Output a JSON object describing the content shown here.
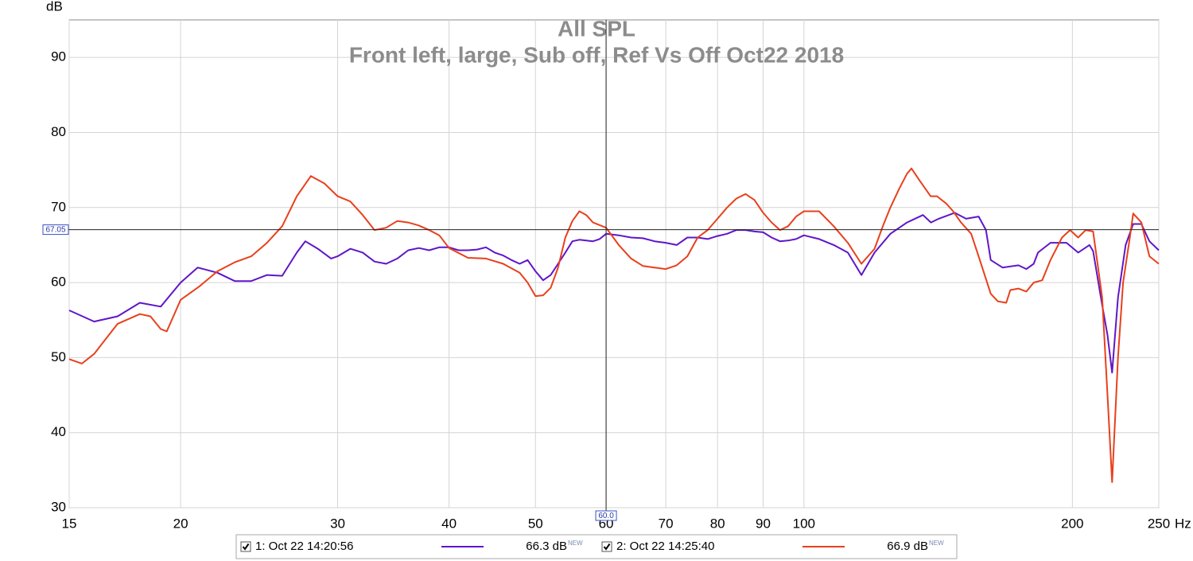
{
  "chart_data": {
    "type": "line",
    "title": "All SPL",
    "subtitle": "Front left, large, Sub off, Ref Vs Off Oct22 2018",
    "y_label": "dB",
    "x_label": "Hz",
    "xscale": "log",
    "xlim": [
      15,
      250
    ],
    "ylim": [
      30,
      95
    ],
    "xticks": [
      15,
      20,
      30,
      40,
      50,
      60,
      70,
      80,
      90,
      100,
      200,
      250
    ],
    "yticks": [
      30,
      40,
      50,
      60,
      70,
      80,
      90
    ],
    "grid": true,
    "cursor": {
      "x": {
        "value": 60,
        "label": "60.0"
      },
      "y": 67.05
    },
    "series": [
      {
        "name": "1: Oct 22 14:20:56",
        "color": "#5f16c8",
        "text_color": "#5a14b4",
        "checked": true,
        "level": {
          "value": 66.3,
          "label": "66.3 dB"
        },
        "badge": "NEW",
        "x": [
          15,
          16,
          17,
          18,
          19,
          20,
          20.9,
          22,
          23,
          24,
          25,
          26,
          27,
          27.6,
          28.5,
          29.5,
          30,
          31,
          32,
          33,
          34,
          35,
          36,
          37,
          38,
          39,
          40,
          41,
          42,
          43,
          44,
          45,
          46,
          47,
          48,
          49,
          50,
          51,
          52,
          53,
          54,
          55,
          56,
          58,
          59,
          60,
          62,
          64,
          66,
          68,
          70,
          72,
          74,
          76,
          78,
          80,
          82,
          84,
          86,
          88,
          90,
          92,
          94,
          96,
          98,
          100,
          104,
          108,
          112,
          116,
          120,
          125,
          130.5,
          136,
          138.8,
          141.6,
          147.6,
          152,
          157,
          160,
          162,
          167,
          174,
          177.6,
          181,
          183,
          189,
          197,
          203,
          209,
          211,
          216,
          219,
          221.6,
          225,
          229.5,
          234,
          239,
          244,
          250
        ],
        "values": [
          56.3,
          54.8,
          55.5,
          57.3,
          56.8,
          60,
          62,
          61.3,
          60.2,
          60.2,
          61,
          60.9,
          64,
          65.5,
          64.5,
          63.2,
          63.5,
          64.5,
          64,
          62.8,
          62.5,
          63.2,
          64.3,
          64.6,
          64.3,
          64.7,
          64.7,
          64.3,
          64.3,
          64.4,
          64.7,
          64,
          63.6,
          63,
          62.5,
          63,
          61.5,
          60.3,
          61,
          62.5,
          64,
          65.5,
          65.7,
          65.5,
          65.8,
          66.5,
          66.3,
          66,
          65.9,
          65.5,
          65.3,
          65,
          66,
          66,
          65.8,
          66.2,
          66.5,
          67,
          67,
          66.8,
          66.7,
          66,
          65.5,
          65.6,
          65.8,
          66.3,
          65.8,
          65,
          64,
          61,
          64,
          66.5,
          68,
          69,
          68,
          68.5,
          69.3,
          68.5,
          68.8,
          67,
          63,
          62,
          62.3,
          61.8,
          62.5,
          64,
          65.3,
          65.3,
          64,
          65,
          64.2,
          57,
          53,
          48,
          58,
          65,
          67.8,
          67.8,
          65.5,
          64.3
        ]
      },
      {
        "name": "2: Oct 22 14:25:40",
        "color": "#e8401c",
        "text_color": "#e03c12",
        "checked": true,
        "level": {
          "value": 66.9,
          "label": "66.9 dB"
        },
        "badge": "NEW",
        "x": [
          15,
          15.5,
          16,
          17,
          18,
          18.5,
          19,
          19.3,
          20,
          21,
          22,
          23,
          24,
          25,
          26,
          27,
          28,
          29,
          30,
          31,
          32,
          33,
          34,
          35,
          36,
          37,
          38,
          39,
          40,
          42,
          44,
          46,
          48,
          49,
          50,
          51,
          52,
          53,
          54,
          55,
          56,
          57,
          58,
          60,
          62,
          64,
          66,
          68,
          70,
          72,
          74,
          76,
          78,
          80,
          82,
          84,
          86,
          88,
          90,
          92,
          94,
          96,
          98,
          100,
          104,
          108,
          112,
          116,
          120,
          122.6,
          125,
          127.9,
          130.5,
          132,
          135,
          138.7,
          141,
          144.5,
          147,
          150,
          154,
          157.5,
          162,
          165,
          168.6,
          170.4,
          174,
          177.6,
          181,
          185,
          189,
          194.7,
          198.8,
          203,
          207,
          211,
          216,
          219,
          221.6,
          225,
          228,
          232,
          234,
          239,
          244,
          250
        ],
        "values": [
          49.8,
          49.2,
          50.5,
          54.5,
          55.8,
          55.5,
          53.8,
          53.5,
          57.7,
          59.5,
          61.5,
          62.7,
          63.5,
          65.3,
          67.5,
          71.5,
          74.2,
          73.2,
          71.5,
          70.8,
          69,
          67,
          67.3,
          68.2,
          68,
          67.6,
          67,
          66.3,
          64.6,
          63.3,
          63.2,
          62.5,
          61.3,
          60,
          58.2,
          58.3,
          59.3,
          62,
          66,
          68.2,
          69.5,
          69,
          68,
          67.3,
          65,
          63.2,
          62.2,
          62,
          61.8,
          62.3,
          63.5,
          66,
          67,
          68.5,
          70,
          71.2,
          71.8,
          71,
          69.3,
          68,
          67,
          67.5,
          68.8,
          69.5,
          69.5,
          67.5,
          65.3,
          62.5,
          64.5,
          67.5,
          70,
          72.5,
          74.5,
          75.2,
          73.5,
          71.5,
          71.5,
          70.5,
          69.5,
          68,
          66.5,
          63,
          58.5,
          57.5,
          57.3,
          59,
          59.2,
          58.8,
          60,
          60.3,
          63,
          66,
          67,
          66,
          67,
          66.8,
          58,
          45,
          33.4,
          50,
          60,
          66,
          69.2,
          68,
          63.5,
          62.5
        ]
      }
    ]
  }
}
